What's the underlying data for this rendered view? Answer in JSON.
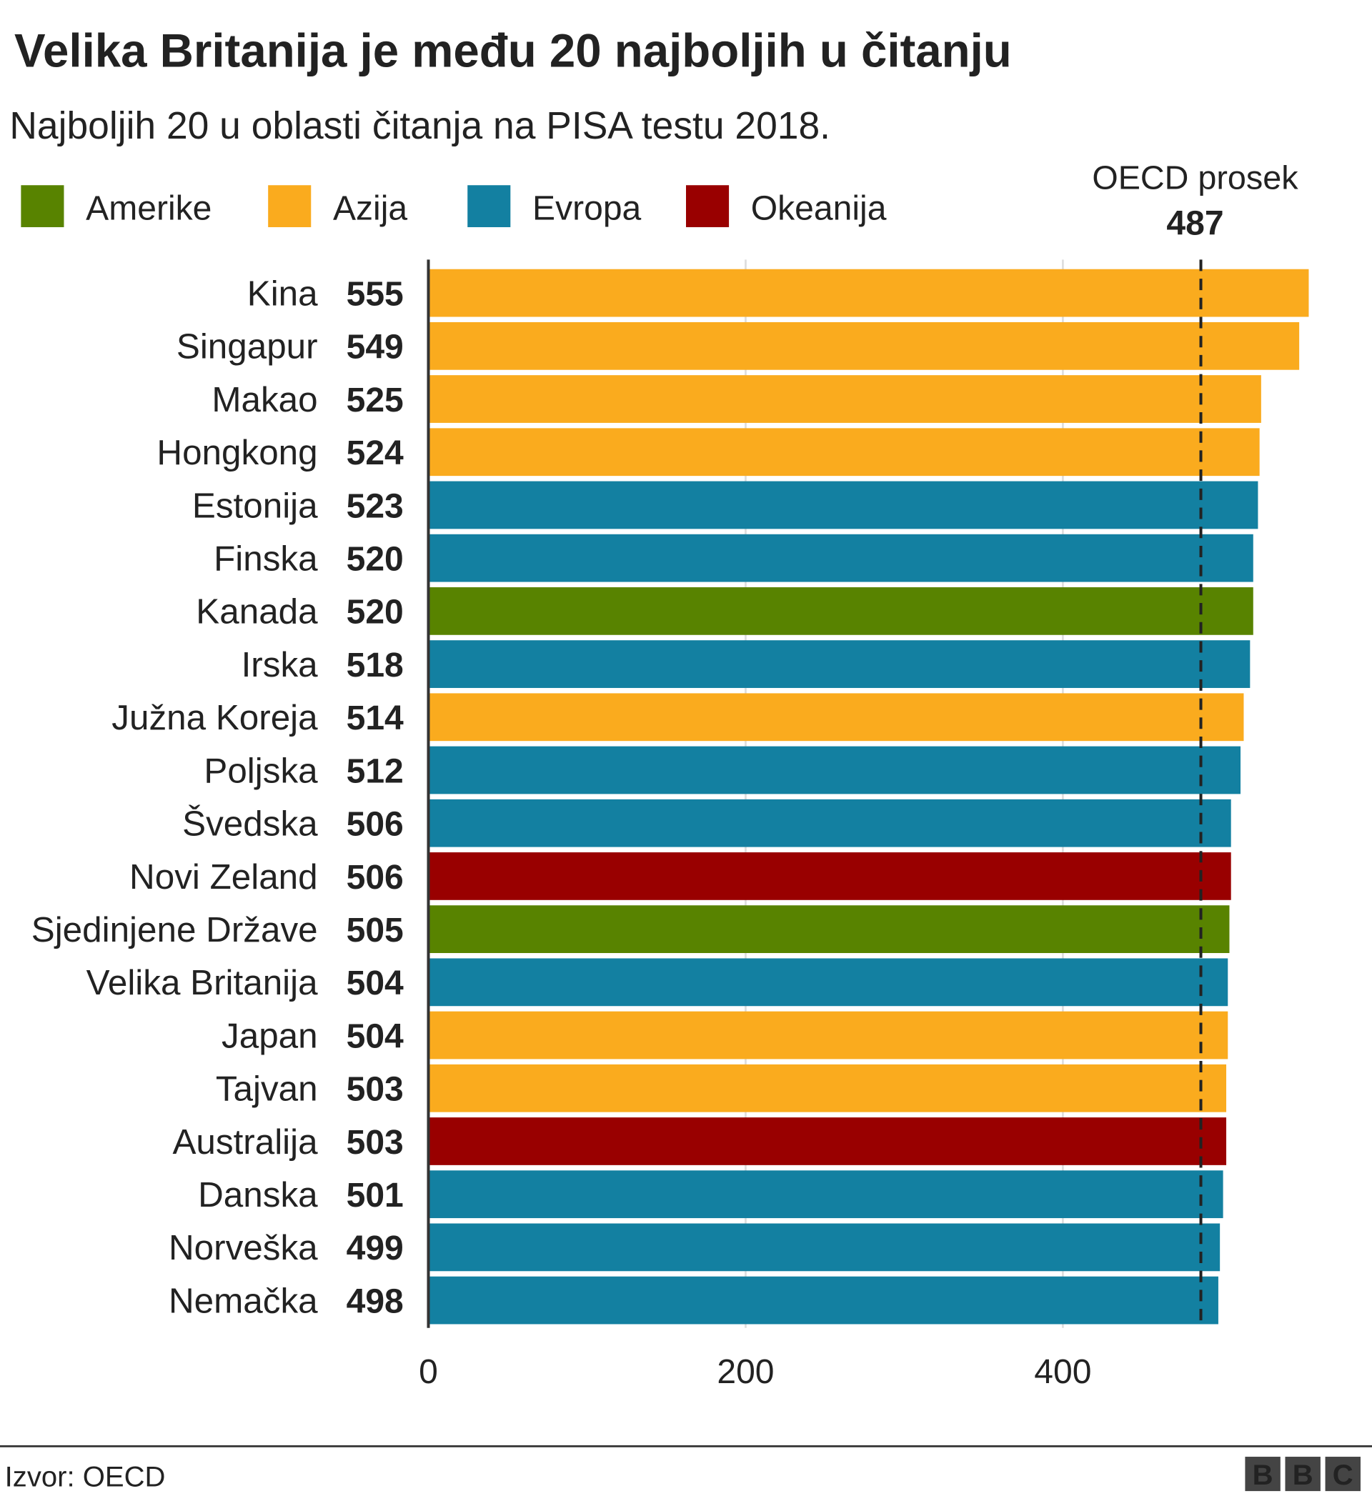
{
  "chart_data": {
    "type": "hbar",
    "title": "Velika Britanija je među 20 najboljih u čitanju",
    "subtitle": "Najboljih 20 u oblasti čitanja na PISA testu 2018.",
    "legend": [
      {
        "name": "Amerike",
        "color": "#588300"
      },
      {
        "name": "Azija",
        "color": "#faab1e"
      },
      {
        "name": "Evropa",
        "color": "#1380a1"
      },
      {
        "name": "Okeanija",
        "color": "#990000"
      }
    ],
    "categories": [
      "Kina",
      "Singapur",
      "Makao",
      "Hongkong",
      "Estonija",
      "Finska",
      "Kanada",
      "Irska",
      "Južna Koreja",
      "Poljska",
      "Švedska",
      "Novi Zeland",
      "Sjedinjene Države",
      "Velika Britanija",
      "Japan",
      "Tajvan",
      "Australija",
      "Danska",
      "Norveška",
      "Nemačka"
    ],
    "values": [
      555,
      549,
      525,
      524,
      523,
      520,
      520,
      518,
      514,
      512,
      506,
      506,
      505,
      504,
      504,
      503,
      503,
      501,
      499,
      498
    ],
    "colors": [
      "#faab1e",
      "#faab1e",
      "#faab1e",
      "#faab1e",
      "#1380a1",
      "#1380a1",
      "#588300",
      "#1380a1",
      "#faab1e",
      "#1380a1",
      "#1380a1",
      "#990000",
      "#588300",
      "#1380a1",
      "#faab1e",
      "#faab1e",
      "#990000",
      "#1380a1",
      "#1380a1",
      "#1380a1"
    ],
    "reference": {
      "label": "OECD prosek",
      "value": 487
    },
    "xlim": [
      0,
      560
    ],
    "xticks": [
      0,
      200,
      400
    ],
    "grid": true,
    "source": "Izvor: OECD",
    "logo": [
      "B",
      "B",
      "C"
    ]
  }
}
